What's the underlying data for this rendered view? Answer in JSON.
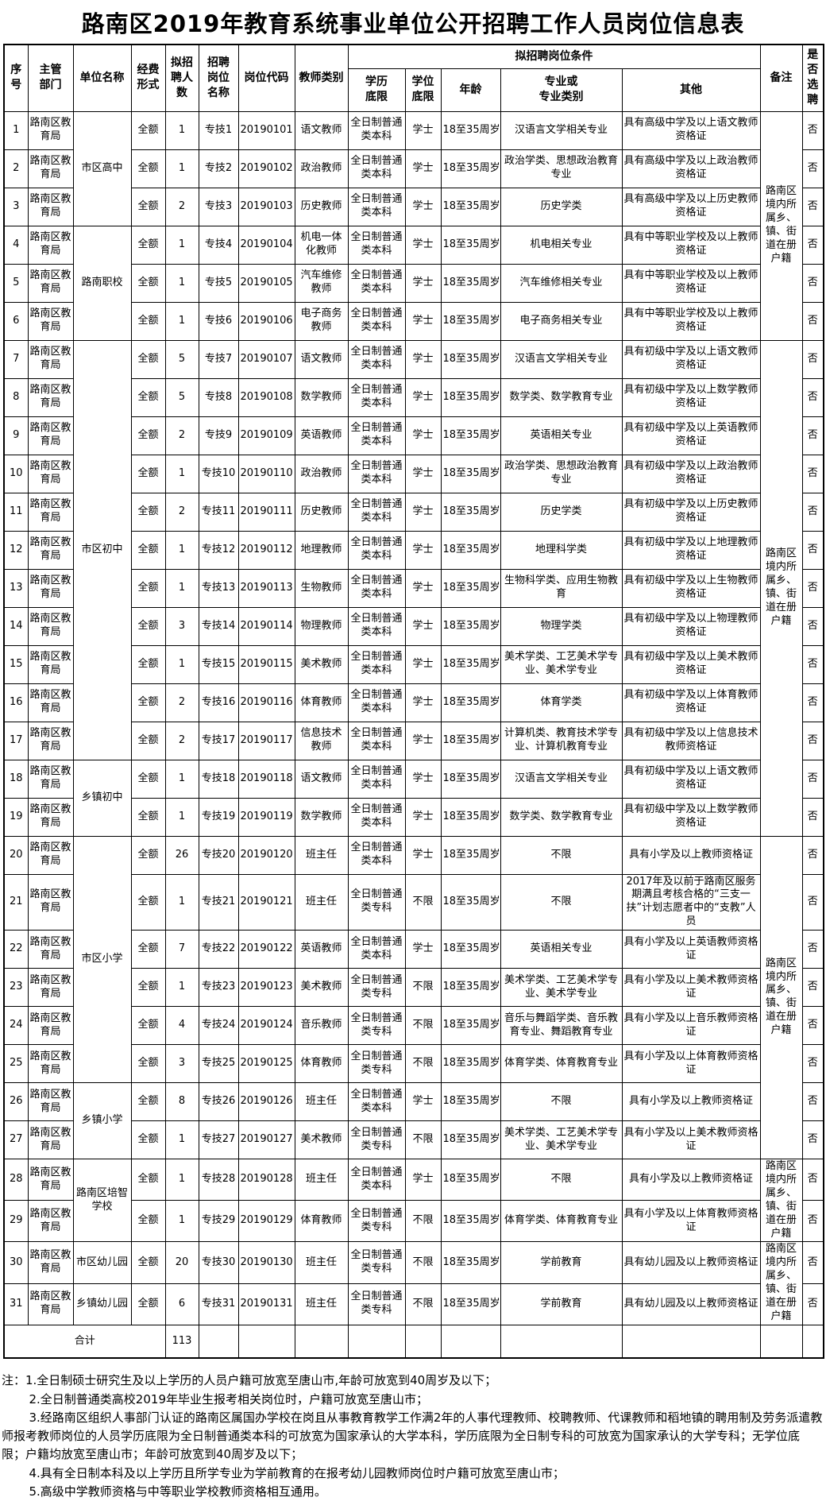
{
  "title": "路南区2019年教育系统事业单位公开招聘工作人员岗位信息表",
  "header": {
    "seq": "序\n号",
    "dept": "主管\n部门",
    "unit": "单位名称",
    "fund": "经费\n形式",
    "count": "拟招\n聘人\n数",
    "post": "招聘\n岗位\n名称",
    "code": "岗位代码",
    "category": "教师类别",
    "conditions": "拟招聘岗位条件",
    "edu": "学历\n底限",
    "degree": "学位\n底限",
    "age": "年龄",
    "major": "专业或\n专业类别",
    "other": "其他",
    "remark": "备注",
    "select": "是\n否\n选\n聘"
  },
  "rows": [
    {
      "no": "1",
      "dept": "路南区教育局",
      "fund": "全额",
      "num": "1",
      "post": "专技1",
      "code": "20190101",
      "category": "语文教师",
      "edu": "全日制普通类本科",
      "degree": "学士",
      "age": "18至35周岁",
      "major": "汉语言文学相关专业",
      "other": "具有高级中学及以上语文教师资格证",
      "select": "否"
    },
    {
      "no": "2",
      "dept": "路南区教育局",
      "fund": "全额",
      "num": "1",
      "post": "专技2",
      "code": "20190102",
      "category": "政治教师",
      "edu": "全日制普通类本科",
      "degree": "学士",
      "age": "18至35周岁",
      "major": "政治学类、思想政治教育专业",
      "other": "具有高级中学及以上政治教师资格证",
      "select": "否"
    },
    {
      "no": "3",
      "dept": "路南区教育局",
      "fund": "全额",
      "num": "2",
      "post": "专技3",
      "code": "20190103",
      "category": "历史教师",
      "edu": "全日制普通类本科",
      "degree": "学士",
      "age": "18至35周岁",
      "major": "历史学类",
      "other": "具有高级中学及以上历史教师资格证",
      "select": "否"
    },
    {
      "no": "4",
      "dept": "路南区教育局",
      "fund": "全额",
      "num": "1",
      "post": "专技4",
      "code": "20190104",
      "category": "机电一体化教师",
      "edu": "全日制普通类本科",
      "degree": "学士",
      "age": "18至35周岁",
      "major": "机电相关专业",
      "other": "具有中等职业学校及以上教师资格证",
      "select": "否"
    },
    {
      "no": "5",
      "dept": "路南区教育局",
      "fund": "全额",
      "num": "1",
      "post": "专技5",
      "code": "20190105",
      "category": "汽车维修教师",
      "edu": "全日制普通类本科",
      "degree": "学士",
      "age": "18至35周岁",
      "major": "汽车维修相关专业",
      "other": "具有中等职业学校及以上教师资格证",
      "select": "否"
    },
    {
      "no": "6",
      "dept": "路南区教育局",
      "fund": "全额",
      "num": "1",
      "post": "专技6",
      "code": "20190106",
      "category": "电子商务教师",
      "edu": "全日制普通类本科",
      "degree": "学士",
      "age": "18至35周岁",
      "major": "电子商务相关专业",
      "other": "具有中等职业学校及以上教师资格证",
      "select": "否"
    },
    {
      "no": "7",
      "dept": "路南区教育局",
      "fund": "全额",
      "num": "5",
      "post": "专技7",
      "code": "20190107",
      "category": "语文教师",
      "edu": "全日制普通类本科",
      "degree": "学士",
      "age": "18至35周岁",
      "major": "汉语言文学相关专业",
      "other": "具有初级中学及以上语文教师资格证",
      "select": "否"
    },
    {
      "no": "8",
      "dept": "路南区教育局",
      "fund": "全额",
      "num": "5",
      "post": "专技8",
      "code": "20190108",
      "category": "数学教师",
      "edu": "全日制普通类本科",
      "degree": "学士",
      "age": "18至35周岁",
      "major": "数学类、数学教育专业",
      "other": "具有初级中学及以上数学教师资格证",
      "select": "否"
    },
    {
      "no": "9",
      "dept": "路南区教育局",
      "fund": "全额",
      "num": "2",
      "post": "专技9",
      "code": "20190109",
      "category": "英语教师",
      "edu": "全日制普通类本科",
      "degree": "学士",
      "age": "18至35周岁",
      "major": "英语相关专业",
      "other": "具有初级中学及以上英语教师资格证",
      "select": "否"
    },
    {
      "no": "10",
      "dept": "路南区教育局",
      "fund": "全额",
      "num": "1",
      "post": "专技10",
      "code": "20190110",
      "category": "政治教师",
      "edu": "全日制普通类本科",
      "degree": "学士",
      "age": "18至35周岁",
      "major": "政治学类、思想政治教育专业",
      "other": "具有初级中学及以上政治教师资格证",
      "select": "否"
    },
    {
      "no": "11",
      "dept": "路南区教育局",
      "fund": "全额",
      "num": "2",
      "post": "专技11",
      "code": "20190111",
      "category": "历史教师",
      "edu": "全日制普通类本科",
      "degree": "学士",
      "age": "18至35周岁",
      "major": "历史学类",
      "other": "具有初级中学及以上历史教师资格证",
      "select": "否"
    },
    {
      "no": "12",
      "dept": "路南区教育局",
      "fund": "全额",
      "num": "1",
      "post": "专技12",
      "code": "20190112",
      "category": "地理教师",
      "edu": "全日制普通类本科",
      "degree": "学士",
      "age": "18至35周岁",
      "major": "地理科学类",
      "other": "具有初级中学及以上地理教师资格证",
      "select": "否"
    },
    {
      "no": "13",
      "dept": "路南区教育局",
      "fund": "全额",
      "num": "1",
      "post": "专技13",
      "code": "20190113",
      "category": "生物教师",
      "edu": "全日制普通类本科",
      "degree": "学士",
      "age": "18至35周岁",
      "major": "生物科学类、应用生物教育",
      "other": "具有初级中学及以上生物教师资格证",
      "select": "否"
    },
    {
      "no": "14",
      "dept": "路南区教育局",
      "fund": "全额",
      "num": "3",
      "post": "专技14",
      "code": "20190114",
      "category": "物理教师",
      "edu": "全日制普通类本科",
      "degree": "学士",
      "age": "18至35周岁",
      "major": "物理学类",
      "other": "具有初级中学及以上物理教师资格证",
      "select": "否"
    },
    {
      "no": "15",
      "dept": "路南区教育局",
      "fund": "全额",
      "num": "1",
      "post": "专技15",
      "code": "20190115",
      "category": "美术教师",
      "edu": "全日制普通类本科",
      "degree": "学士",
      "age": "18至35周岁",
      "major": "美术学类、工艺美术学专业、美术学专业",
      "other": "具有初级中学及以上美术教师资格证",
      "select": "否"
    },
    {
      "no": "16",
      "dept": "路南区教育局",
      "fund": "全额",
      "num": "2",
      "post": "专技16",
      "code": "20190116",
      "category": "体育教师",
      "edu": "全日制普通类本科",
      "degree": "学士",
      "age": "18至35周岁",
      "major": "体育学类",
      "other": "具有初级中学及以上体育教师资格证",
      "select": "否"
    },
    {
      "no": "17",
      "dept": "路南区教育局",
      "fund": "全额",
      "num": "2",
      "post": "专技17",
      "code": "20190117",
      "category": "信息技术教师",
      "edu": "全日制普通类本科",
      "degree": "学士",
      "age": "18至35周岁",
      "major": "计算机类、教育技术学专业、计算机教育专业",
      "other": "具有初级中学及以上信息技术教师资格证",
      "select": "否"
    },
    {
      "no": "18",
      "dept": "路南区教育局",
      "fund": "全额",
      "num": "1",
      "post": "专技18",
      "code": "20190118",
      "category": "语文教师",
      "edu": "全日制普通类本科",
      "degree": "学士",
      "age": "18至35周岁",
      "major": "汉语言文学相关专业",
      "other": "具有初级中学及以上语文教师资格证",
      "select": "否"
    },
    {
      "no": "19",
      "dept": "路南区教育局",
      "fund": "全额",
      "num": "1",
      "post": "专技19",
      "code": "20190119",
      "category": "数学教师",
      "edu": "全日制普通类本科",
      "degree": "学士",
      "age": "18至35周岁",
      "major": "数学类、数学教育专业",
      "other": "具有初级中学及以上数学教师资格证",
      "select": "否"
    },
    {
      "no": "20",
      "dept": "路南区教育局",
      "fund": "全额",
      "num": "26",
      "post": "专技20",
      "code": "20190120",
      "category": "班主任",
      "edu": "全日制普通类本科",
      "degree": "学士",
      "age": "18至35周岁",
      "major": "不限",
      "other": "具有小学及以上教师资格证",
      "select": "否"
    },
    {
      "no": "21",
      "dept": "路南区教育局",
      "fund": "全额",
      "num": "1",
      "post": "专技21",
      "code": "20190121",
      "category": "班主任",
      "edu": "全日制普通类专科",
      "degree": "不限",
      "age": "18至35周岁",
      "major": "不限",
      "other": "2017年及以前于路南区服务期满且考核合格的“三支一扶”计划志愿者中的“支教”人员",
      "select": "否"
    },
    {
      "no": "22",
      "dept": "路南区教育局",
      "fund": "全额",
      "num": "7",
      "post": "专技22",
      "code": "20190122",
      "category": "英语教师",
      "edu": "全日制普通类本科",
      "degree": "学士",
      "age": "18至35周岁",
      "major": "英语相关专业",
      "other": "具有小学及以上英语教师资格证",
      "select": "否"
    },
    {
      "no": "23",
      "dept": "路南区教育局",
      "fund": "全额",
      "num": "1",
      "post": "专技23",
      "code": "20190123",
      "category": "美术教师",
      "edu": "全日制普通类专科",
      "degree": "不限",
      "age": "18至35周岁",
      "major": "美术学类、工艺美术学专业、美术学专业",
      "other": "具有小学及以上美术教师资格证",
      "select": "否"
    },
    {
      "no": "24",
      "dept": "路南区教育局",
      "fund": "全额",
      "num": "4",
      "post": "专技24",
      "code": "20190124",
      "category": "音乐教师",
      "edu": "全日制普通类专科",
      "degree": "不限",
      "age": "18至35周岁",
      "major": "音乐与舞蹈学类、音乐教育专业、舞蹈教育专业",
      "other": "具有小学及以上音乐教师资格证",
      "select": "否"
    },
    {
      "no": "25",
      "dept": "路南区教育局",
      "fund": "全额",
      "num": "3",
      "post": "专技25",
      "code": "20190125",
      "category": "体育教师",
      "edu": "全日制普通类专科",
      "degree": "不限",
      "age": "18至35周岁",
      "major": "体育学类、体育教育专业",
      "other": "具有小学及以上体育教师资格证",
      "select": "否"
    },
    {
      "no": "26",
      "dept": "路南区教育局",
      "fund": "全额",
      "num": "8",
      "post": "专技26",
      "code": "20190126",
      "category": "班主任",
      "edu": "全日制普通类本科",
      "degree": "学士",
      "age": "18至35周岁",
      "major": "不限",
      "other": "具有小学及以上教师资格证",
      "select": "否"
    },
    {
      "no": "27",
      "dept": "路南区教育局",
      "fund": "全额",
      "num": "1",
      "post": "专技27",
      "code": "20190127",
      "category": "美术教师",
      "edu": "全日制普通类专科",
      "degree": "不限",
      "age": "18至35周岁",
      "major": "美术学类、工艺美术学专业、美术学专业",
      "other": "具有小学及以上美术教师资格证",
      "select": "否"
    },
    {
      "no": "28",
      "dept": "路南区教育局",
      "fund": "全额",
      "num": "1",
      "post": "专技28",
      "code": "20190128",
      "category": "班主任",
      "edu": "全日制普通类本科",
      "degree": "学士",
      "age": "18至35周岁",
      "major": "不限",
      "other": "具有小学及以上教师资格证",
      "select": "否"
    },
    {
      "no": "29",
      "dept": "路南区教育局",
      "fund": "全额",
      "num": "1",
      "post": "专技29",
      "code": "20190129",
      "category": "体育教师",
      "edu": "全日制普通类专科",
      "degree": "不限",
      "age": "18至35周岁",
      "major": "体育学类、体育教育专业",
      "other": "具有小学及以上体育教师资格证",
      "select": "否"
    },
    {
      "no": "30",
      "dept": "路南区教育局",
      "fund": "全额",
      "num": "20",
      "post": "专技30",
      "code": "20190130",
      "category": "班主任",
      "edu": "全日制普通类专科",
      "degree": "不限",
      "age": "18至35周岁",
      "major": "学前教育",
      "other": "具有幼儿园及以上教师资格证",
      "select": "否"
    },
    {
      "no": "31",
      "dept": "路南区教育局",
      "fund": "全额",
      "num": "6",
      "post": "专技31",
      "code": "20190131",
      "category": "班主任",
      "edu": "全日制普通类专科",
      "degree": "不限",
      "age": "18至35周岁",
      "major": "学前教育",
      "other": "具有幼儿园及以上教师资格证",
      "select": "否"
    }
  ],
  "unit_groups": [
    {
      "start": 1,
      "span": 3,
      "label": "市区高中"
    },
    {
      "start": 4,
      "span": 3,
      "label": "路南职校"
    },
    {
      "start": 7,
      "span": 11,
      "label": "市区初中"
    },
    {
      "start": 18,
      "span": 2,
      "label": "乡镇初中"
    },
    {
      "start": 20,
      "span": 6,
      "label": "市区小学"
    },
    {
      "start": 26,
      "span": 2,
      "label": "乡镇小学"
    },
    {
      "start": 28,
      "span": 2,
      "label": "路南区培智学校"
    },
    {
      "start": 30,
      "span": 1,
      "label": "市区幼儿园"
    },
    {
      "start": 31,
      "span": 1,
      "label": "乡镇幼儿园"
    }
  ],
  "remark_groups": [
    {
      "start": 1,
      "span": 6,
      "text": "路南区境内所属乡、镇、街道在册户籍"
    },
    {
      "start": 7,
      "span": 13,
      "text": "路南区境内所属乡、镇、街道在册户籍"
    },
    {
      "start": 20,
      "span": 8,
      "text": "路南区境内所属乡、镇、街道在册户籍"
    },
    {
      "start": 28,
      "span": 2,
      "text": "路南区境内所属乡、镇、街道在册户籍"
    },
    {
      "start": 30,
      "span": 2,
      "text": "路南区境内所属乡、镇、街道在册户籍"
    }
  ],
  "total": {
    "label": "合计",
    "value": "113"
  },
  "notes": [
    "注：1.全日制硕士研究生及以上学历的人员户籍可放宽至唐山市,年龄可放宽到40周岁及以下；",
    "2.全日制普通类高校2019年毕业生报考相关岗位时，户籍可放宽至唐山市；",
    "3.经路南区组织人事部门认证的路南区属国办学校在岗且从事教育教学工作满2年的人事代理教师、校聘教师、代课教师和稻地镇的聘用制及劳务派遣教师报考教师岗位的人员学历底限为全日制普通类本科的可放宽为国家承认的大学本科，学历底限为全日制专科的可放宽为国家承认的大学专科；无学位底限；户籍均放宽至唐山市；年龄可放宽到40周岁及以下；",
    "4.具有全日制本科及以上学历且所学专业为学前教育的在报考幼儿园教师岗位时户籍可放宽至唐山市；",
    "5.高级中学教师资格与中等职业学校教师资格相互通用。"
  ]
}
